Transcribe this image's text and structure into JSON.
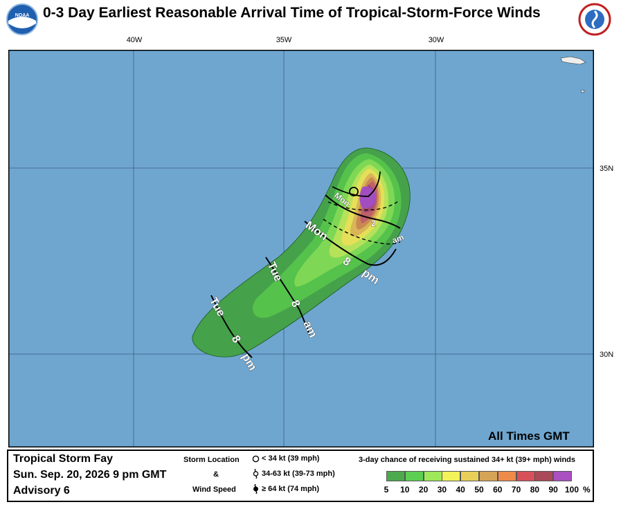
{
  "title": "0-3 Day Earliest Reasonable Arrival Time of Tropical-Storm-Force Winds",
  "logos": {
    "left": "NOAA",
    "right": "NATIONAL WEATHER SERVICE"
  },
  "map": {
    "lon_labels": [
      "40W",
      "35W",
      "30W"
    ],
    "lat_labels": [
      "35N",
      "30N"
    ],
    "ocean_color": "#6fa6cf",
    "time_labels": {
      "mon_early": "Mon",
      "mon_2": "2",
      "mon_am": "am",
      "mon": "Mon",
      "mon_8": "8",
      "mon_pm": "pm",
      "tue1": "Tue",
      "tue1_8": "8",
      "tue1_am": "am",
      "tue2": "Tue",
      "tue2_8": "8",
      "tue2_pm": "pm"
    },
    "all_times": "All Times GMT"
  },
  "info": {
    "storm_name": "Tropical Storm Fay",
    "date": "Sun. Sep. 20, 2026  9 pm GMT",
    "advisory": "Advisory 6"
  },
  "storm_key": {
    "heading1": "Storm Location",
    "amp": "&",
    "heading2": "Wind Speed",
    "items": [
      {
        "icon": "open-circle-icon",
        "label": "< 34 kt (39 mph)"
      },
      {
        "icon": "tropical-storm-symbol-icon",
        "label": "34-63 kt (39-73 mph)"
      },
      {
        "icon": "hurricane-symbol-icon",
        "label": "≥ 64 kt (74 mph)"
      }
    ]
  },
  "probability_legend": {
    "heading": "3-day chance of receiving sustained 34+ kt (39+ mph) winds",
    "ticks": [
      "5",
      "10",
      "20",
      "30",
      "40",
      "50",
      "60",
      "70",
      "80",
      "90",
      "100"
    ],
    "unit": "%",
    "colors": [
      "#4caa4c",
      "#5ccf52",
      "#9ee85a",
      "#f2f25a",
      "#e8cf5a",
      "#d6a458",
      "#ee8a4a",
      "#d8505a",
      "#aa4a58",
      "#aa50c0"
    ]
  }
}
